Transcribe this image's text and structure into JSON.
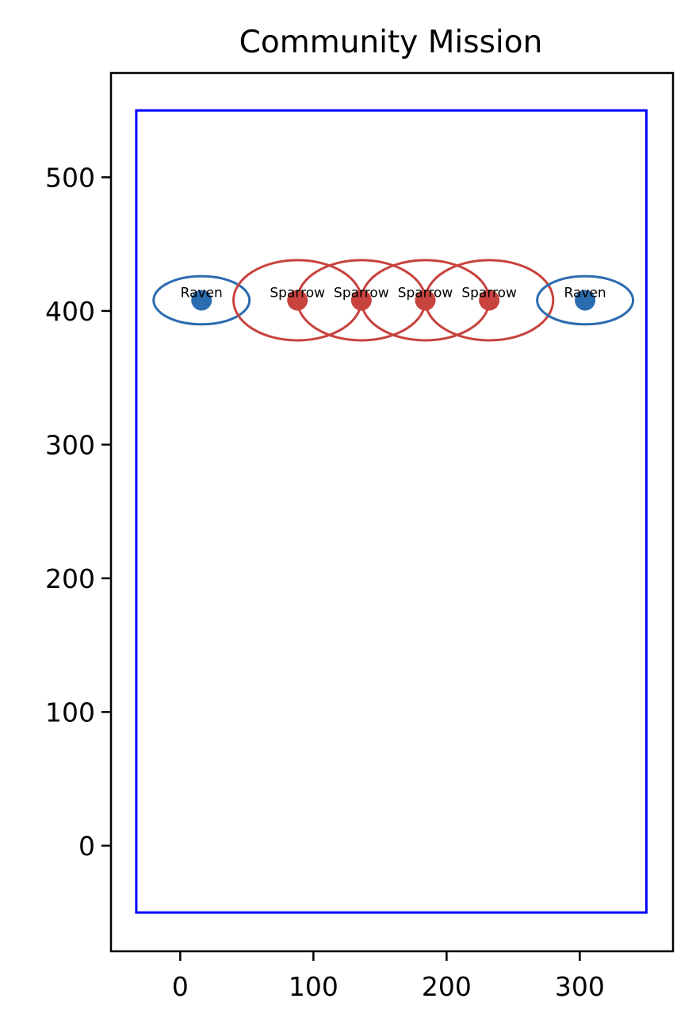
{
  "chart_data": {
    "type": "scatter",
    "title": "Community Mission",
    "xlabel": "",
    "ylabel": "",
    "xlim": [
      -52,
      370
    ],
    "ylim": [
      -79,
      578
    ],
    "xticks": [
      0,
      100,
      200,
      300
    ],
    "yticks": [
      0,
      100,
      200,
      300,
      400,
      500
    ],
    "grid": false,
    "boundary": {
      "x0": -33,
      "x1": 350,
      "y0": -50,
      "y1": 550,
      "color": "#0000ff"
    },
    "colors": {
      "Raven": "#2b6bb0",
      "Sparrow": "#c8423e"
    },
    "points": [
      {
        "label": "Raven",
        "x": 16,
        "y": 408,
        "rx": 36,
        "ry": 18
      },
      {
        "label": "Sparrow",
        "x": 88,
        "y": 408,
        "rx": 48,
        "ry": 30
      },
      {
        "label": "Sparrow",
        "x": 136,
        "y": 408,
        "rx": 48,
        "ry": 30
      },
      {
        "label": "Sparrow",
        "x": 184,
        "y": 408,
        "rx": 48,
        "ry": 30
      },
      {
        "label": "Sparrow",
        "x": 232,
        "y": 408,
        "rx": 48,
        "ry": 30
      },
      {
        "label": "Raven",
        "x": 304,
        "y": 408,
        "rx": 36,
        "ry": 18
      }
    ]
  }
}
